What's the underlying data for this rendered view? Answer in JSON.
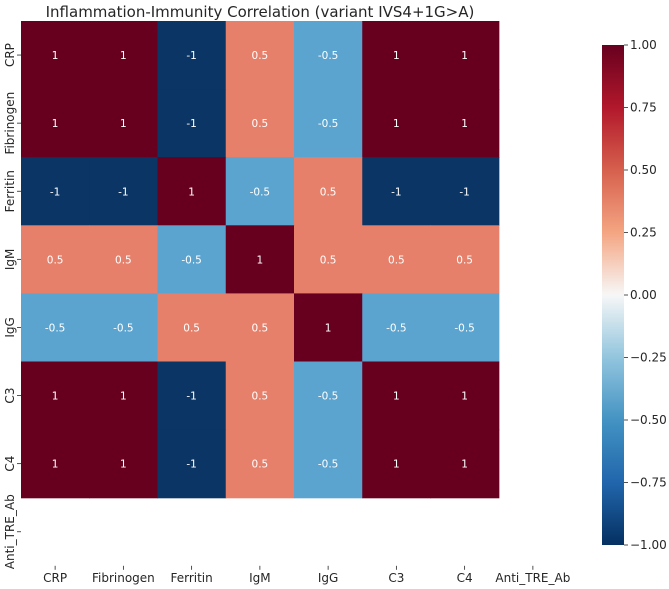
{
  "chart_data": {
    "type": "heatmap",
    "title": "Inflammation-Immunity Correlation (variant IVS4+1G>A)",
    "xlabel": "",
    "ylabel": "",
    "x_labels": [
      "CRP",
      "Fibrinogen",
      "Ferritin",
      "IgM",
      "IgG",
      "C3",
      "C4",
      "Anti_TRE_Ab"
    ],
    "y_labels": [
      "CRP",
      "Fibrinogen",
      "Ferritin",
      "IgM",
      "IgG",
      "C3",
      "C4",
      "Anti_TRE_Ab"
    ],
    "values": [
      [
        1,
        1,
        -1,
        0.5,
        -0.5,
        1,
        1,
        null
      ],
      [
        1,
        1,
        -1,
        0.5,
        -0.5,
        1,
        1,
        null
      ],
      [
        -1,
        -1,
        1,
        -0.5,
        0.5,
        -1,
        -1,
        null
      ],
      [
        0.5,
        0.5,
        -0.5,
        1,
        0.5,
        0.5,
        0.5,
        null
      ],
      [
        -0.5,
        -0.5,
        0.5,
        0.5,
        1,
        -0.5,
        -0.5,
        null
      ],
      [
        1,
        1,
        -1,
        0.5,
        -0.5,
        1,
        1,
        null
      ],
      [
        1,
        1,
        -1,
        0.5,
        -0.5,
        1,
        1,
        null
      ],
      [
        null,
        null,
        null,
        null,
        null,
        null,
        null,
        null
      ]
    ],
    "colorbar": {
      "range": [
        -1,
        1
      ],
      "ticks": [
        1.0,
        0.75,
        0.5,
        0.25,
        0.0,
        -0.25,
        -0.5,
        -0.75,
        -1.0
      ],
      "tick_labels": [
        "1.00",
        "0.75",
        "0.50",
        "0.25",
        "0.00",
        "−0.25",
        "−0.50",
        "−0.75",
        "−1.00"
      ],
      "colormap": "RdBu_r"
    },
    "colors": {
      "pos_1": "#67001f",
      "pos_0_5": "#e6806a",
      "neg_0_5": "#5aa4cf",
      "neg_1": "#0b3565"
    }
  }
}
